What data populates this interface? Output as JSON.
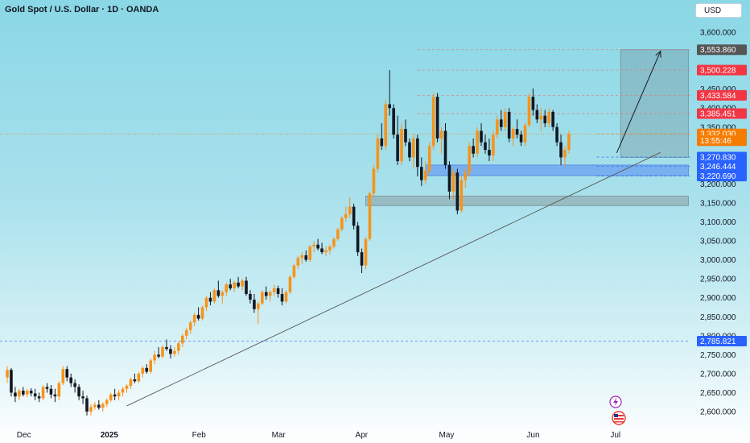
{
  "header": {
    "title": "Gold Spot / U.S. Dollar · 1D · OANDA",
    "currency_button": "USD"
  },
  "colors": {
    "up": "#f7931a",
    "down": "#131722",
    "red_tag": "#f23645",
    "blue_tag": "#2962ff",
    "gray_tag": "#555555",
    "orange_tag": "#f57c00"
  },
  "icons": [
    "lightning-icon",
    "us-flag-icon"
  ],
  "chart_data": {
    "type": "candlestick",
    "title": "Gold Spot / U.S. Dollar · 1D · OANDA",
    "xlabel": "",
    "ylabel": "",
    "ylim": [
      2580,
      3640
    ],
    "grid": false,
    "y_ticks": [
      "3,600.000",
      "3,450.000",
      "3,400.000",
      "3,350.000",
      "3,200.000",
      "3,150.000",
      "3,100.000",
      "3,050.000",
      "3,000.000",
      "2,950.000",
      "2,900.000",
      "2,850.000",
      "2,800.000",
      "2,750.000",
      "2,700.000",
      "2,650.000",
      "2,600.000"
    ],
    "x_ticks": [
      {
        "label": "Dec",
        "index": 4
      },
      {
        "label": "2025",
        "index": 25,
        "bold": true
      },
      {
        "label": "Feb",
        "index": 48
      },
      {
        "label": "Mar",
        "index": 68
      },
      {
        "label": "Apr",
        "index": 89
      },
      {
        "label": "May",
        "index": 110
      },
      {
        "label": "Jun",
        "index": 132
      },
      {
        "label": "Jul",
        "index": 153
      }
    ],
    "price_tags": [
      {
        "label": "3,553.860",
        "value": 3553.86,
        "color": "gray"
      },
      {
        "label": "3,500.228",
        "value": 3500.228,
        "color": "red"
      },
      {
        "label": "3,433.584",
        "value": 3433.584,
        "color": "red"
      },
      {
        "label": "3,385.451",
        "value": 3385.451,
        "color": "red"
      },
      {
        "label": "3,332.030",
        "value": 3332.03,
        "color": "orange"
      },
      {
        "label": "13:55:46",
        "value": 3314,
        "color": "orange"
      },
      {
        "label": "3,270.830",
        "value": 3270.83,
        "color": "blue"
      },
      {
        "label": "3,246.444",
        "value": 3246.444,
        "color": "blue"
      },
      {
        "label": "3,220.690",
        "value": 3220.69,
        "color": "blue"
      },
      {
        "label": "2,785.821",
        "value": 2785.821,
        "color": "blue"
      }
    ],
    "last_price": 3332.03,
    "zones": [
      {
        "name": "support-zone-upper",
        "x_from": 105,
        "x_to": 171,
        "y_from": 3222,
        "y_to": 3250
      },
      {
        "name": "support-zone-lower",
        "x_from": 90,
        "x_to": 171,
        "y_from": 3143,
        "y_to": 3168
      }
    ],
    "target_box": {
      "x_from": 154,
      "x_to": 171,
      "y_from": 3270,
      "y_to": 3554
    },
    "trendline": {
      "x1": 30,
      "y1": 2615,
      "x2": 164,
      "y2": 3283
    },
    "projection_arrow": {
      "x1": 153,
      "y1": 3282,
      "x2": 164,
      "y2": 3550
    },
    "candles": [
      [
        2690,
        2720,
        2675,
        2710
      ],
      [
        2710,
        2715,
        2640,
        2650
      ],
      [
        2650,
        2665,
        2625,
        2640
      ],
      [
        2640,
        2660,
        2630,
        2655
      ],
      [
        2655,
        2665,
        2640,
        2645
      ],
      [
        2645,
        2660,
        2638,
        2655
      ],
      [
        2655,
        2662,
        2640,
        2648
      ],
      [
        2648,
        2660,
        2630,
        2640
      ],
      [
        2640,
        2650,
        2625,
        2635
      ],
      [
        2635,
        2670,
        2630,
        2665
      ],
      [
        2665,
        2675,
        2650,
        2660
      ],
      [
        2660,
        2670,
        2635,
        2645
      ],
      [
        2645,
        2660,
        2625,
        2640
      ],
      [
        2640,
        2680,
        2630,
        2675
      ],
      [
        2675,
        2720,
        2670,
        2712
      ],
      [
        2712,
        2720,
        2680,
        2690
      ],
      [
        2690,
        2700,
        2665,
        2675
      ],
      [
        2675,
        2685,
        2650,
        2665
      ],
      [
        2665,
        2672,
        2630,
        2640
      ],
      [
        2640,
        2655,
        2620,
        2635
      ],
      [
        2635,
        2642,
        2590,
        2600
      ],
      [
        2600,
        2620,
        2590,
        2612
      ],
      [
        2612,
        2625,
        2605,
        2618
      ],
      [
        2618,
        2630,
        2605,
        2610
      ],
      [
        2610,
        2625,
        2600,
        2620
      ],
      [
        2620,
        2635,
        2612,
        2630
      ],
      [
        2630,
        2650,
        2625,
        2645
      ],
      [
        2645,
        2660,
        2630,
        2640
      ],
      [
        2640,
        2658,
        2630,
        2650
      ],
      [
        2650,
        2665,
        2640,
        2660
      ],
      [
        2660,
        2672,
        2650,
        2668
      ],
      [
        2668,
        2690,
        2660,
        2685
      ],
      [
        2685,
        2700,
        2675,
        2680
      ],
      [
        2680,
        2705,
        2675,
        2700
      ],
      [
        2700,
        2720,
        2690,
        2715
      ],
      [
        2715,
        2725,
        2700,
        2705
      ],
      [
        2705,
        2740,
        2700,
        2735
      ],
      [
        2735,
        2760,
        2725,
        2750
      ],
      [
        2750,
        2770,
        2740,
        2745
      ],
      [
        2745,
        2775,
        2740,
        2770
      ],
      [
        2770,
        2790,
        2760,
        2765
      ],
      [
        2765,
        2775,
        2740,
        2752
      ],
      [
        2752,
        2770,
        2745,
        2760
      ],
      [
        2760,
        2785,
        2750,
        2780
      ],
      [
        2780,
        2805,
        2770,
        2800
      ],
      [
        2800,
        2820,
        2790,
        2815
      ],
      [
        2815,
        2840,
        2805,
        2835
      ],
      [
        2835,
        2860,
        2825,
        2855
      ],
      [
        2855,
        2875,
        2840,
        2845
      ],
      [
        2845,
        2880,
        2840,
        2875
      ],
      [
        2875,
        2905,
        2865,
        2900
      ],
      [
        2900,
        2915,
        2880,
        2890
      ],
      [
        2890,
        2925,
        2885,
        2920
      ],
      [
        2920,
        2945,
        2900,
        2905
      ],
      [
        2905,
        2920,
        2885,
        2915
      ],
      [
        2915,
        2940,
        2905,
        2935
      ],
      [
        2935,
        2950,
        2920,
        2925
      ],
      [
        2925,
        2945,
        2915,
        2940
      ],
      [
        2940,
        2955,
        2925,
        2930
      ],
      [
        2930,
        2950,
        2920,
        2945
      ],
      [
        2945,
        2955,
        2905,
        2910
      ],
      [
        2910,
        2920,
        2885,
        2895
      ],
      [
        2895,
        2910,
        2860,
        2870
      ],
      [
        2870,
        2890,
        2830,
        2885
      ],
      [
        2885,
        2920,
        2880,
        2915
      ],
      [
        2915,
        2930,
        2895,
        2905
      ],
      [
        2905,
        2920,
        2890,
        2915
      ],
      [
        2915,
        2935,
        2905,
        2925
      ],
      [
        2925,
        2932,
        2900,
        2910
      ],
      [
        2910,
        2925,
        2880,
        2890
      ],
      [
        2890,
        2920,
        2885,
        2915
      ],
      [
        2915,
        2960,
        2910,
        2955
      ],
      [
        2955,
        2990,
        2950,
        2985
      ],
      [
        2985,
        3010,
        2975,
        3005
      ],
      [
        3005,
        3020,
        2990,
        3012
      ],
      [
        3012,
        3025,
        2995,
        3000
      ],
      [
        3000,
        3040,
        2995,
        3035
      ],
      [
        3035,
        3050,
        3020,
        3040
      ],
      [
        3040,
        3055,
        3025,
        3030
      ],
      [
        3030,
        3045,
        3015,
        3020
      ],
      [
        3020,
        3035,
        3010,
        3025
      ],
      [
        3025,
        3040,
        3015,
        3035
      ],
      [
        3035,
        3060,
        3030,
        3055
      ],
      [
        3055,
        3085,
        3050,
        3080
      ],
      [
        3080,
        3115,
        3075,
        3110
      ],
      [
        3110,
        3140,
        3100,
        3120
      ],
      [
        3120,
        3165,
        3110,
        3140
      ],
      [
        3140,
        3148,
        3080,
        3090
      ],
      [
        3090,
        3100,
        3010,
        3020
      ],
      [
        3020,
        3030,
        2965,
        2985
      ],
      [
        2985,
        3060,
        2975,
        3055
      ],
      [
        3055,
        3180,
        3050,
        3175
      ],
      [
        3175,
        3250,
        3165,
        3240
      ],
      [
        3240,
        3330,
        3230,
        3320
      ],
      [
        3320,
        3360,
        3290,
        3300
      ],
      [
        3300,
        3420,
        3290,
        3410
      ],
      [
        3410,
        3500,
        3380,
        3400
      ],
      [
        3400,
        3410,
        3320,
        3330
      ],
      [
        3330,
        3380,
        3250,
        3260
      ],
      [
        3260,
        3360,
        3250,
        3345
      ],
      [
        3345,
        3370,
        3300,
        3310
      ],
      [
        3310,
        3320,
        3260,
        3270
      ],
      [
        3270,
        3330,
        3240,
        3320
      ],
      [
        3320,
        3330,
        3220,
        3245
      ],
      [
        3245,
        3270,
        3195,
        3210
      ],
      [
        3210,
        3260,
        3200,
        3235
      ],
      [
        3235,
        3310,
        3225,
        3300
      ],
      [
        3300,
        3440,
        3290,
        3430
      ],
      [
        3430,
        3440,
        3310,
        3320
      ],
      [
        3320,
        3350,
        3280,
        3340
      ],
      [
        3340,
        3360,
        3240,
        3250
      ],
      [
        3250,
        3260,
        3160,
        3180
      ],
      [
        3180,
        3240,
        3160,
        3230
      ],
      [
        3230,
        3240,
        3120,
        3130
      ],
      [
        3130,
        3220,
        3125,
        3210
      ],
      [
        3210,
        3240,
        3190,
        3230
      ],
      [
        3230,
        3310,
        3220,
        3300
      ],
      [
        3300,
        3320,
        3270,
        3280
      ],
      [
        3280,
        3350,
        3270,
        3340
      ],
      [
        3340,
        3360,
        3300,
        3310
      ],
      [
        3310,
        3330,
        3280,
        3290
      ],
      [
        3290,
        3320,
        3260,
        3275
      ],
      [
        3275,
        3340,
        3260,
        3330
      ],
      [
        3330,
        3380,
        3320,
        3370
      ],
      [
        3370,
        3395,
        3340,
        3350
      ],
      [
        3350,
        3400,
        3340,
        3390
      ],
      [
        3390,
        3400,
        3310,
        3320
      ],
      [
        3320,
        3350,
        3300,
        3345
      ],
      [
        3345,
        3370,
        3320,
        3330
      ],
      [
        3330,
        3340,
        3300,
        3310
      ],
      [
        3310,
        3360,
        3300,
        3355
      ],
      [
        3355,
        3440,
        3350,
        3430
      ],
      [
        3430,
        3452,
        3380,
        3395
      ],
      [
        3395,
        3410,
        3360,
        3370
      ],
      [
        3370,
        3400,
        3340,
        3380
      ],
      [
        3380,
        3395,
        3350,
        3360
      ],
      [
        3360,
        3400,
        3350,
        3390
      ],
      [
        3390,
        3395,
        3340,
        3350
      ],
      [
        3350,
        3360,
        3300,
        3310
      ],
      [
        3310,
        3330,
        3250,
        3270
      ],
      [
        3270,
        3300,
        3248,
        3290
      ],
      [
        3290,
        3340,
        3280,
        3332
      ]
    ]
  }
}
